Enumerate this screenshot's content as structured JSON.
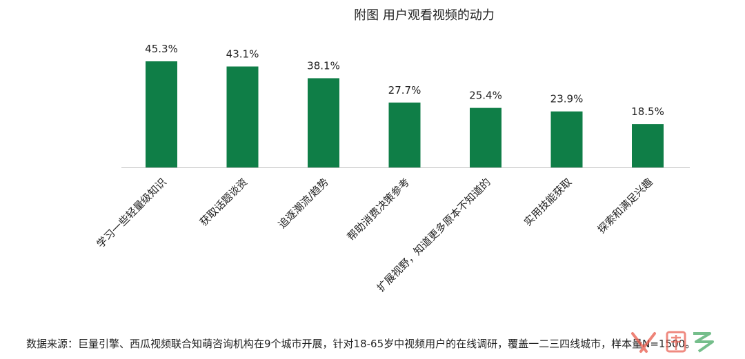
{
  "colors": {
    "bar": "#0f7e47",
    "axis": "#bfbfbf",
    "text": "#222222",
    "watermark_red": "#e8594a",
    "watermark_green": "#3aa35a"
  },
  "chart_data": {
    "type": "bar",
    "title": "附图 用户观看视频的动力",
    "xlabel": "",
    "ylabel": "",
    "ylim": [
      0,
      50
    ],
    "grid": false,
    "legend": "none",
    "categories": [
      "学习一些轻量级知识",
      "获取话题谈资",
      "追逐潮流/趋势",
      "帮助消费决策参考",
      "扩展视野，知道更多原本不知道的",
      "实用技能获取",
      "探索和满足兴趣"
    ],
    "values": [
      45.3,
      43.1,
      38.1,
      27.7,
      25.4,
      23.9,
      18.5
    ],
    "value_labels": [
      "45.3%",
      "43.1%",
      "38.1%",
      "27.7%",
      "25.4%",
      "23.9%",
      "18.5%"
    ]
  },
  "footer": {
    "source_note": "数据来源：巨量引擎、西瓜视频联合知萌咨询机构在9个城市开展，针对18-65岁中视频用户的在线调研，覆盖一二三四线城市，样本量N=1500。"
  }
}
